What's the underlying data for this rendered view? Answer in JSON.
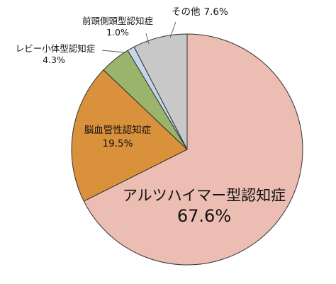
{
  "chart_data": {
    "type": "pie",
    "title": "",
    "slices": [
      {
        "label": "アルツハイマー型認知症",
        "value": 67.6,
        "value_text": "67.6%",
        "color": "#ecbdb2"
      },
      {
        "label": "脳血管性認知症",
        "value": 19.5,
        "value_text": "19.5%",
        "color": "#d9913b"
      },
      {
        "label": "レビー小体型認知症",
        "value": 4.3,
        "value_text": "4.3%",
        "color": "#9ab46b"
      },
      {
        "label": "前頭側頭型認知症",
        "value": 1.0,
        "value_text": "1.0%",
        "color": "#c5d6ea"
      },
      {
        "label": "その他",
        "value": 7.6,
        "value_text": "7.6%",
        "color": "#c8c8c8"
      }
    ],
    "start": "12 o'clock",
    "direction": "clockwise",
    "legend": "none",
    "edge_color": "#333333"
  }
}
